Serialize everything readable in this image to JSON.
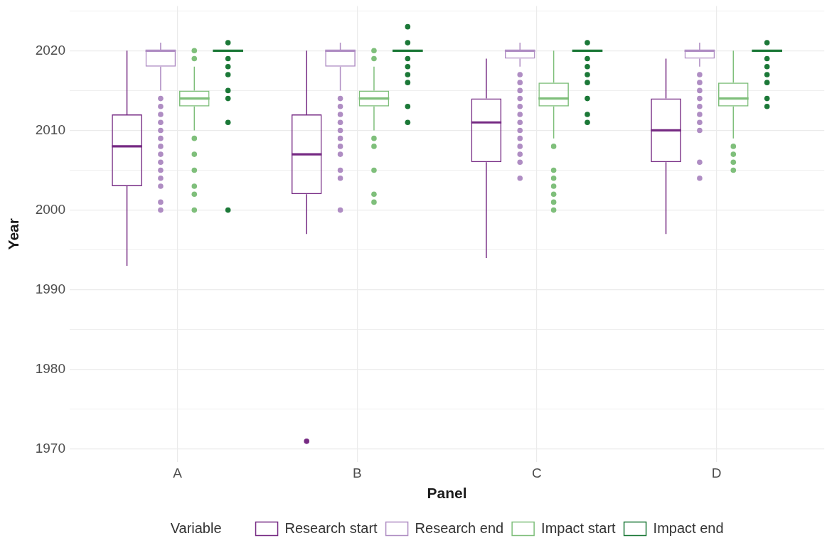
{
  "chart_data": {
    "type": "box",
    "xlabel": "Panel",
    "ylabel": "Year",
    "legend_title": "Variable",
    "legend": "bottom",
    "grid": true,
    "categories": [
      "A",
      "B",
      "C",
      "D"
    ],
    "ylim": [
      1968.4,
      2025.6
    ],
    "yticks": [
      1970,
      {
        "value": 1975,
        "label": null
      },
      1980,
      {
        "value": 1985,
        "label": null
      },
      1990,
      {
        "value": 1995,
        "label": null
      },
      2000,
      {
        "value": 2005,
        "label": null
      },
      2010,
      {
        "value": 2015,
        "label": null
      },
      2020,
      {
        "value": 2025,
        "label": null
      }
    ],
    "series": [
      {
        "name": "Research start",
        "color": "#762a83",
        "boxes": [
          {
            "low": 1993,
            "q1": 2003,
            "median": 2008,
            "q3": 2012,
            "high": 2020
          },
          {
            "low": 1997,
            "q1": 2002,
            "median": 2007,
            "q3": 2012,
            "high": 2020,
            "outliers": [
              1971
            ]
          },
          {
            "low": 1994,
            "q1": 2006,
            "median": 2011,
            "q3": 2014,
            "high": 2019
          },
          {
            "low": 1997,
            "q1": 2006,
            "median": 2010,
            "q3": 2014,
            "high": 2019
          }
        ]
      },
      {
        "name": "Research end",
        "color": "#af8dc3",
        "boxes": [
          {
            "low": 2015,
            "q1": 2018,
            "median": 2020,
            "q3": 2020,
            "high": 2021,
            "outliers": [
              2014,
              2013,
              2012,
              2011,
              2010,
              2009,
              2008,
              2007,
              2006,
              2005,
              2004,
              2003,
              2001,
              2000
            ]
          },
          {
            "low": 2015,
            "q1": 2018,
            "median": 2020,
            "q3": 2020,
            "high": 2021,
            "outliers": [
              2014,
              2013,
              2012,
              2011,
              2010,
              2009,
              2008,
              2007,
              2005,
              2004,
              2000
            ]
          },
          {
            "low": 2018,
            "q1": 2019,
            "median": 2020,
            "q3": 2020,
            "high": 2021,
            "outliers": [
              2017,
              2016,
              2015,
              2014,
              2013,
              2012,
              2011,
              2010,
              2009,
              2008,
              2007,
              2006,
              2004
            ]
          },
          {
            "low": 2018,
            "q1": 2019,
            "median": 2020,
            "q3": 2020,
            "high": 2021,
            "outliers": [
              2017,
              2016,
              2015,
              2014,
              2013,
              2012,
              2011,
              2010,
              2006,
              2004
            ]
          }
        ]
      },
      {
        "name": "Impact start",
        "color": "#7fbf7b",
        "boxes": [
          {
            "low": 2010,
            "q1": 2013,
            "median": 2014,
            "q3": 2015,
            "high": 2018,
            "outliers": [
              2020,
              2019,
              2009,
              2007,
              2005,
              2003,
              2002,
              2000
            ]
          },
          {
            "low": 2010,
            "q1": 2013,
            "median": 2014,
            "q3": 2015,
            "high": 2018,
            "outliers": [
              2020,
              2019,
              2009,
              2008,
              2005,
              2002,
              2001
            ]
          },
          {
            "low": 2009,
            "q1": 2013,
            "median": 2014,
            "q3": 2016,
            "high": 2020,
            "outliers": [
              2008,
              2005,
              2004,
              2003,
              2002,
              2001,
              2000
            ]
          },
          {
            "low": 2009,
            "q1": 2013,
            "median": 2014,
            "q3": 2016,
            "high": 2020,
            "outliers": [
              2008,
              2007,
              2006,
              2005
            ]
          }
        ]
      },
      {
        "name": "Impact end",
        "color": "#1b7837",
        "boxes": [
          {
            "low": 2020,
            "q1": 2020,
            "median": 2020,
            "q3": 2020,
            "high": 2020,
            "outliers": [
              2021,
              2019,
              2018,
              2017,
              2015,
              2014,
              2011,
              2000
            ]
          },
          {
            "low": 2020,
            "q1": 2020,
            "median": 2020,
            "q3": 2020,
            "high": 2020,
            "outliers": [
              2023,
              2021,
              2019,
              2018,
              2017,
              2016,
              2013,
              2011
            ]
          },
          {
            "low": 2020,
            "q1": 2020,
            "median": 2020,
            "q3": 2020,
            "high": 2020,
            "outliers": [
              2021,
              2019,
              2018,
              2017,
              2016,
              2014,
              2012,
              2011
            ]
          },
          {
            "low": 2020,
            "q1": 2020,
            "median": 2020,
            "q3": 2020,
            "high": 2020,
            "outliers": [
              2021,
              2019,
              2018,
              2017,
              2016,
              2014,
              2013
            ]
          }
        ]
      }
    ]
  }
}
